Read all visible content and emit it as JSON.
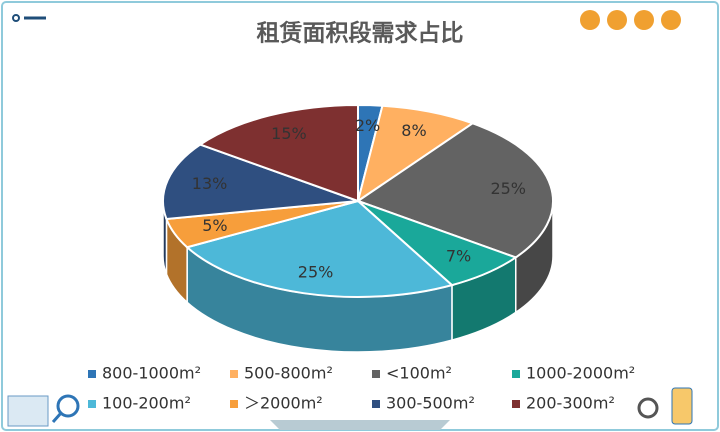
{
  "chart_data": {
    "type": "pie3d",
    "title": "租赁面积段需求占比",
    "categories": [
      "800-1000m²",
      "500-800m²",
      "<100m²",
      "1000-2000m²",
      "100-200m²",
      "＞2000m²",
      "300-500m²",
      "200-300m²"
    ],
    "values": [
      2,
      8,
      25,
      7,
      25,
      5,
      13,
      15
    ],
    "value_labels": [
      "2%",
      "8%",
      "25%",
      "7%",
      "25%",
      "5%",
      "13%",
      "15%"
    ],
    "colors": [
      "#2e75b6",
      "#ffb061",
      "#636363",
      "#1aa89a",
      "#4db8d8",
      "#f79e3b",
      "#2f4f80",
      "#7e3030"
    ]
  }
}
